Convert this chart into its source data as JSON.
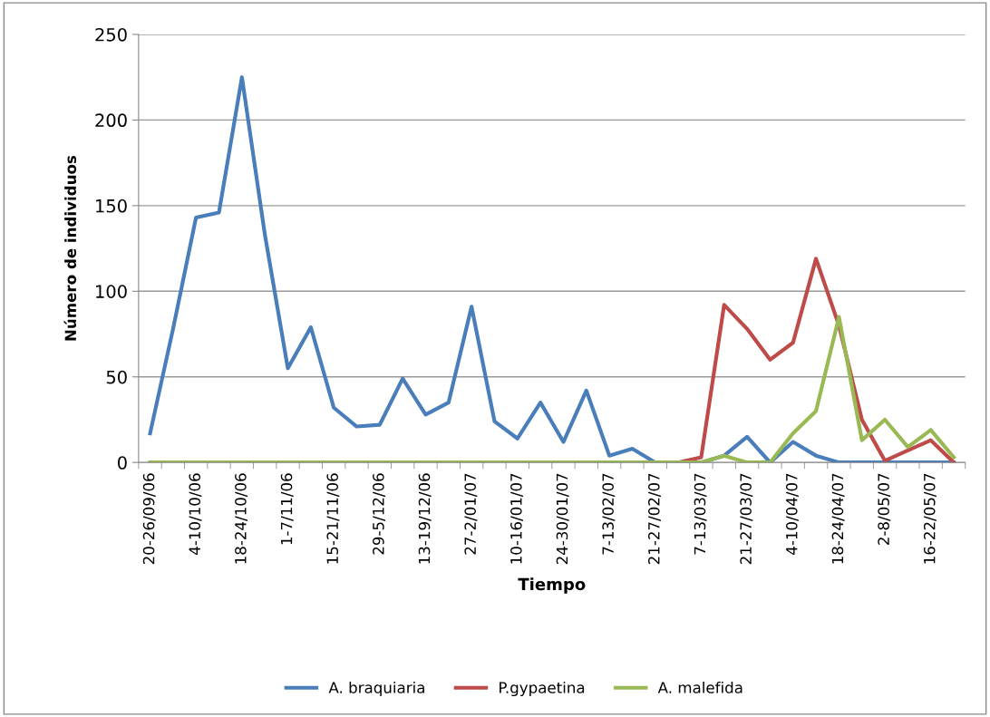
{
  "chart_data": {
    "type": "line",
    "xlabel": "Tiempo",
    "ylabel": "Número de individuos",
    "categories": [
      "20-26/09/06",
      null,
      "4-10/10/06",
      null,
      "18-24/10/06",
      null,
      "1-7/11/06",
      null,
      "15-21/11/06",
      null,
      "29-5/12/06",
      null,
      "13-19/12/06",
      null,
      "27-2/01/07",
      null,
      "10-16/01/07",
      null,
      "24-30/01/07",
      null,
      "7-13/02/07",
      null,
      "21-27/02/07",
      null,
      "7-13/03/07",
      null,
      "21-27/03/07",
      null,
      "4-10/04/07",
      null,
      "18-24/04/07",
      null,
      "2-8/05/07",
      null,
      "16-22/05/07",
      null
    ],
    "series": [
      {
        "name": "A. braquiaria",
        "color": "#4a7ebb",
        "values": [
          17,
          78,
          143,
          146,
          225,
          133,
          55,
          79,
          32,
          21,
          22,
          49,
          28,
          35,
          91,
          24,
          14,
          35,
          12,
          42,
          4,
          8,
          0,
          0,
          0,
          4,
          15,
          0,
          12,
          4,
          0,
          0,
          0,
          0,
          0,
          0
        ]
      },
      {
        "name": "P.gypaetina",
        "color": "#be4b48",
        "values": [
          null,
          null,
          null,
          null,
          null,
          null,
          null,
          null,
          null,
          null,
          null,
          null,
          null,
          null,
          null,
          null,
          null,
          null,
          null,
          null,
          null,
          null,
          null,
          0,
          3,
          92,
          78,
          60,
          70,
          119,
          80,
          25,
          1,
          7,
          13,
          0
        ]
      },
      {
        "name": "A. malefida",
        "color": "#98b954",
        "values": [
          0,
          0,
          0,
          0,
          0,
          0,
          0,
          0,
          0,
          0,
          0,
          0,
          0,
          0,
          0,
          0,
          0,
          0,
          0,
          0,
          0,
          0,
          0,
          0,
          0,
          4,
          0,
          0,
          17,
          30,
          85,
          13,
          25,
          9,
          19,
          3
        ]
      }
    ],
    "ylim": [
      0,
      250
    ],
    "yticks": [
      0,
      50,
      100,
      150,
      200,
      250
    ],
    "grid": "y",
    "legend": "bottom",
    "marker": "none",
    "line_style": "solid"
  }
}
